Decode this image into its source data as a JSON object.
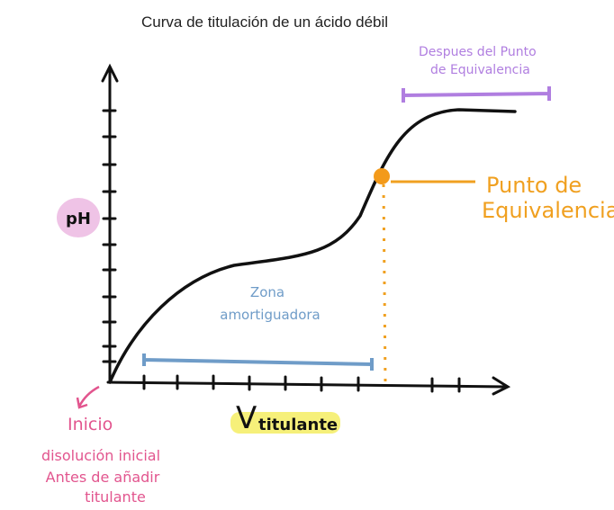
{
  "title": "Curva de titulación de un ácido débil",
  "labels": {
    "after_equivalence": [
      "Despues del Punto",
      "de Equivalencia"
    ],
    "equivalence_point": [
      "Punto de",
      "Equivalencia"
    ],
    "y_axis": "pH",
    "buffer_zone": [
      "Zona",
      "amortiguadora"
    ],
    "x_axis": {
      "symbol": "V",
      "subscript": "titulante"
    },
    "start": "Inicio",
    "start_note": [
      "disolución inicial",
      "Antes de añadir",
      "titulante"
    ]
  }
}
